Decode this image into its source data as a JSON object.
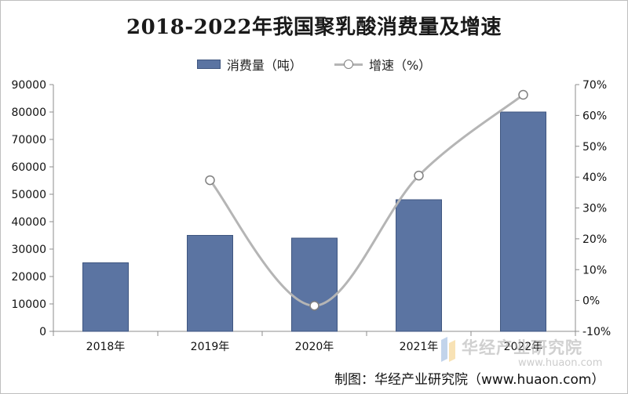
{
  "chart_data": {
    "type": "bar",
    "title": "2018-2022年我国聚乳酸消费量及增速",
    "categories": [
      "2018年",
      "2019年",
      "2020年",
      "2021年",
      "2022年"
    ],
    "series": [
      {
        "name": "消费量（吨）",
        "type": "bar",
        "axis": "left",
        "color": "#5b74a2",
        "values": [
          25000,
          35000,
          34000,
          48000,
          80000
        ]
      },
      {
        "name": "增速（%）",
        "type": "line",
        "axis": "right",
        "color": "#b5b5b5",
        "values": [
          null,
          39,
          -1.7,
          40.5,
          66.7
        ]
      }
    ],
    "y_left": {
      "ylim": [
        0,
        90000
      ],
      "ticks": [
        "0",
        "10000",
        "20000",
        "30000",
        "40000",
        "50000",
        "60000",
        "70000",
        "80000",
        "90000"
      ]
    },
    "y_right": {
      "ylim": [
        -10,
        70
      ],
      "ticks": [
        "-10%",
        "0%",
        "10%",
        "20%",
        "30%",
        "40%",
        "50%",
        "60%",
        "70%"
      ]
    },
    "legend_position": "top",
    "grid": false
  },
  "source": "制图：华经产业研究院（www.huaon.com）",
  "watermark": {
    "text": "华经产业研究院",
    "url": "www.huaon.com"
  }
}
